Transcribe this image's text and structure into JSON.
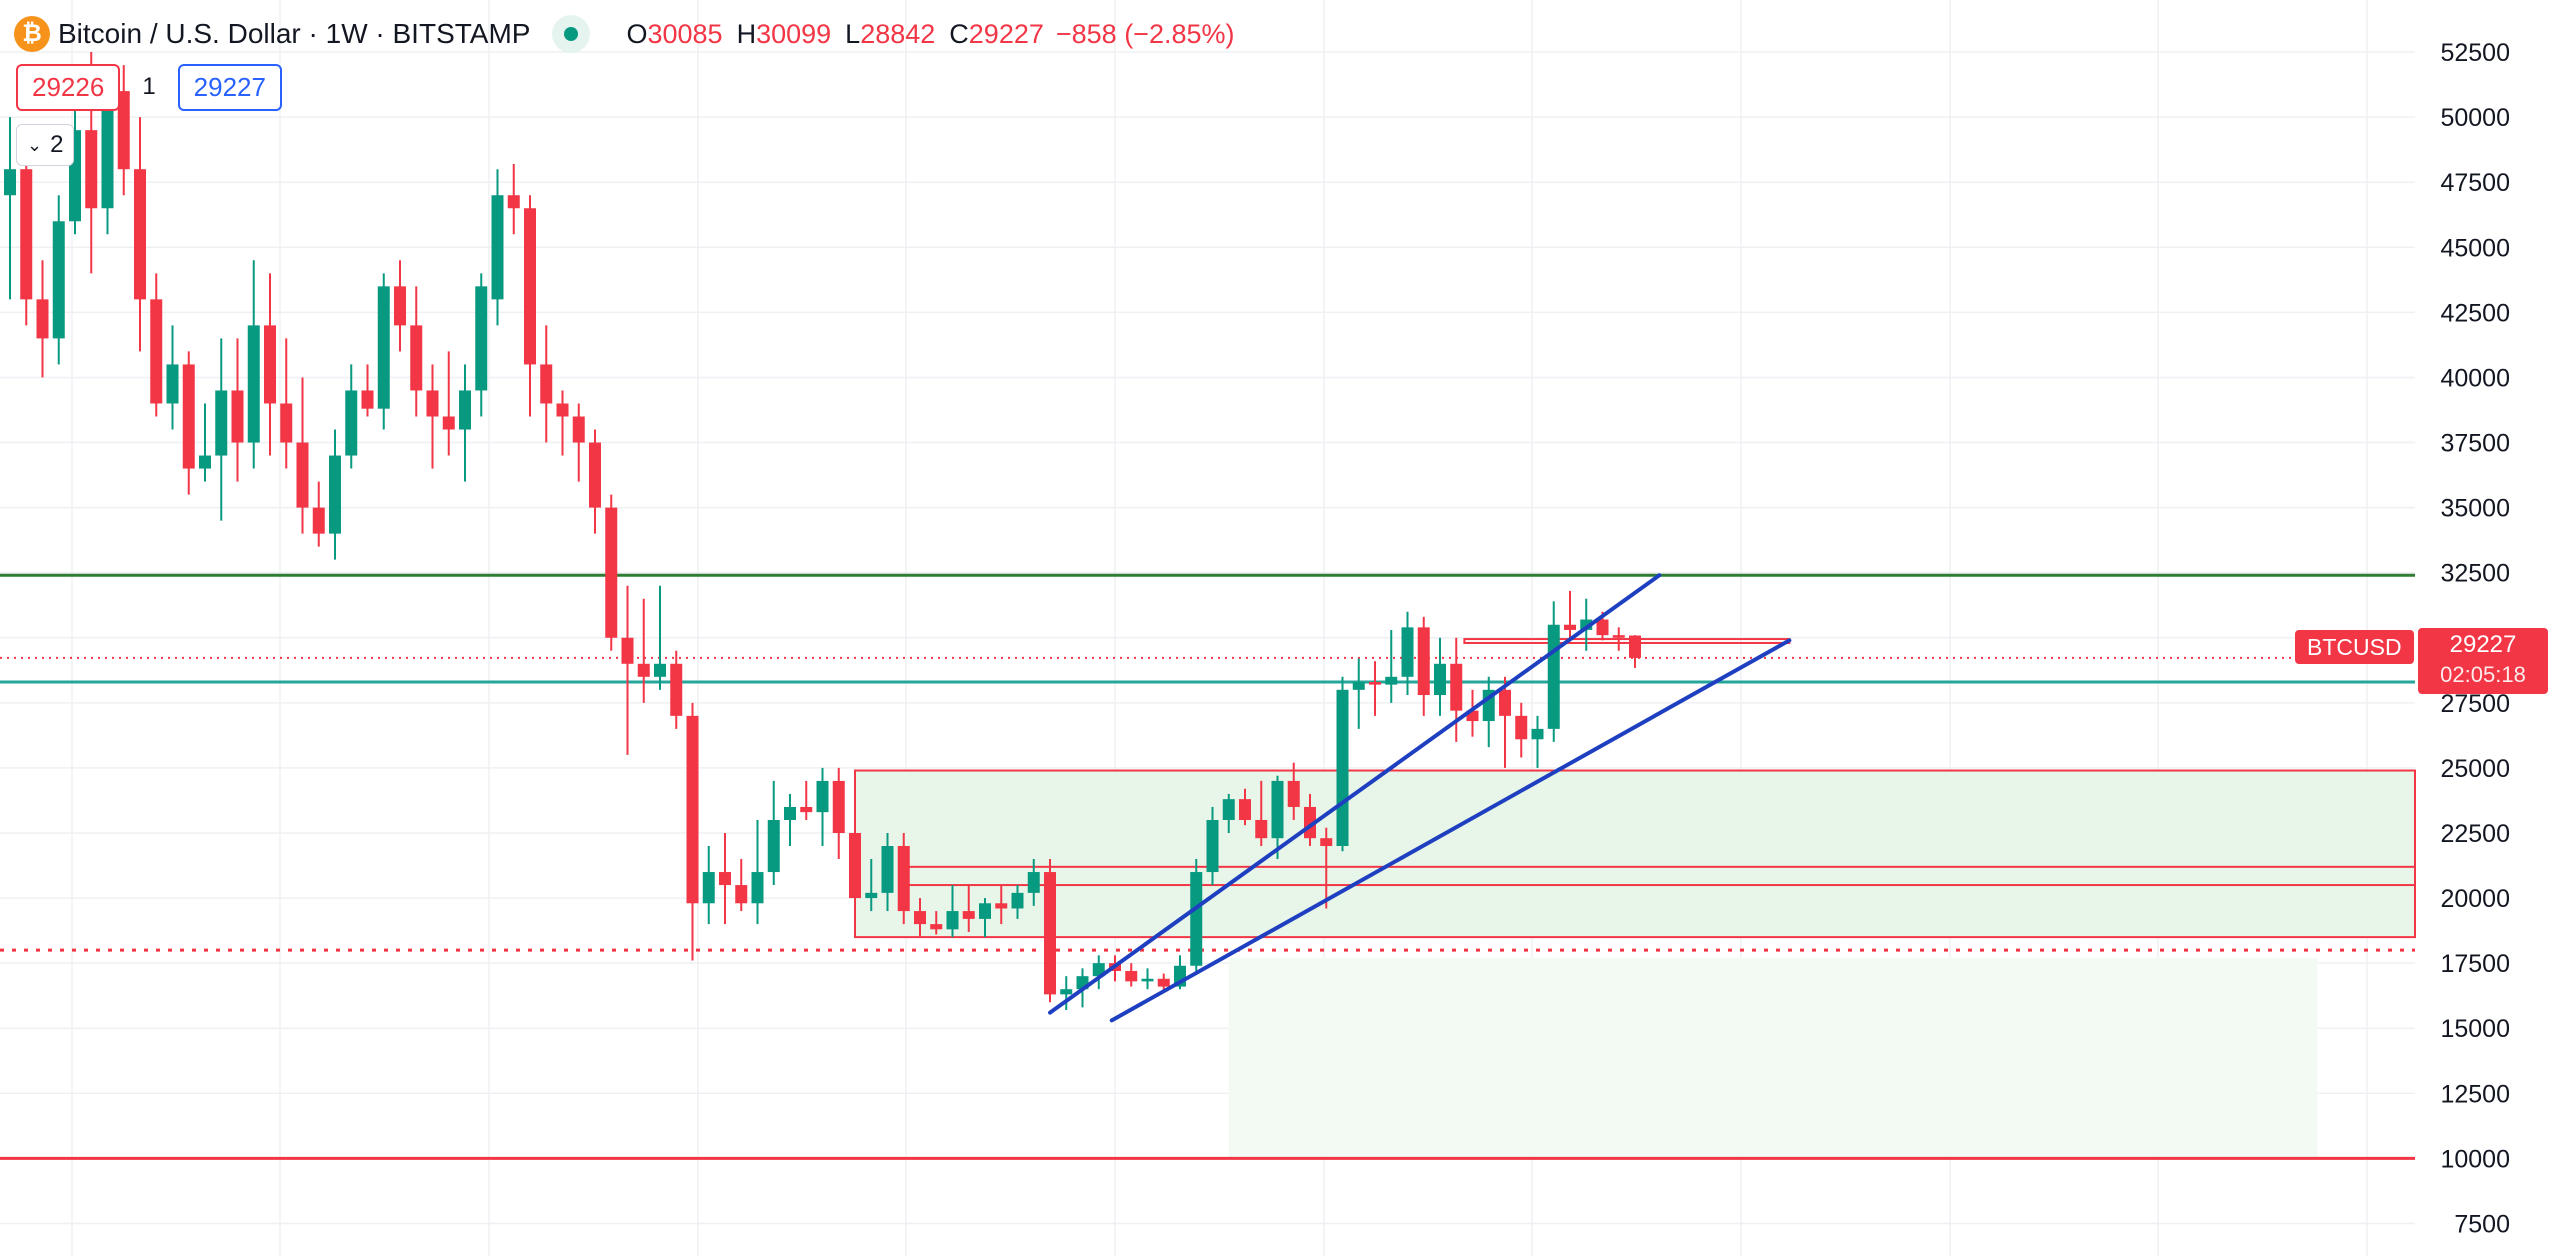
{
  "header": {
    "symbol_title": "Bitcoin / U.S. Dollar · 1W · BITSTAMP",
    "coin_icon": "₿",
    "ohlc": {
      "open_label": "O",
      "open": "30085",
      "high_label": "H",
      "high": "30099",
      "low_label": "L",
      "low": "28842",
      "close_label": "C",
      "close": "29227",
      "change": "−858 (−2.85%)"
    }
  },
  "trade": {
    "sell_price": "29226",
    "quantity": "1",
    "buy_price": "29227"
  },
  "indicators_toggle": {
    "count": "2",
    "icon": "chevron-down-icon"
  },
  "price_label": {
    "symbol": "BTCUSD",
    "price": "29227",
    "countdown": "02:05:18"
  },
  "colors": {
    "up": "#089981",
    "down": "#f23645",
    "trendline": "#1e40c0",
    "support_line": "#26a69a",
    "resistance_line": "#2e7d32",
    "zone_fill": "#e8f5e9",
    "grid": "#eef0f3"
  },
  "chart_data": {
    "type": "candlestick",
    "symbol": "BTCUSD",
    "exchange": "BITSTAMP",
    "interval": "1W",
    "ylim": [
      6250,
      54500
    ],
    "y_ticks": [
      7500,
      10000,
      12500,
      15000,
      17500,
      20000,
      22500,
      25000,
      27500,
      30000,
      32500,
      35000,
      37500,
      40000,
      42500,
      45000,
      47500,
      50000,
      52500
    ],
    "grid": true,
    "candles": [
      [
        0,
        47000,
        50000,
        43000,
        48000
      ],
      [
        1,
        48000,
        48500,
        42000,
        43000
      ],
      [
        2,
        43000,
        44500,
        40000,
        41500
      ],
      [
        3,
        41500,
        47000,
        40500,
        46000
      ],
      [
        4,
        46000,
        50500,
        45500,
        49500
      ],
      [
        5,
        49500,
        52500,
        44000,
        46500
      ],
      [
        6,
        46500,
        52000,
        45500,
        51000
      ],
      [
        7,
        51000,
        52000,
        47000,
        48000
      ],
      [
        8,
        48000,
        50000,
        41000,
        43000
      ],
      [
        9,
        43000,
        44000,
        38500,
        39000
      ],
      [
        10,
        39000,
        42000,
        38000,
        40500
      ],
      [
        11,
        40500,
        41000,
        35500,
        36500
      ],
      [
        12,
        36500,
        39000,
        36000,
        37000
      ],
      [
        13,
        37000,
        41500,
        34500,
        39500
      ],
      [
        14,
        39500,
        41500,
        36000,
        37500
      ],
      [
        15,
        37500,
        44500,
        36500,
        42000
      ],
      [
        16,
        42000,
        44000,
        37000,
        39000
      ],
      [
        17,
        39000,
        41500,
        36500,
        37500
      ],
      [
        18,
        37500,
        40000,
        34000,
        35000
      ],
      [
        19,
        35000,
        36000,
        33500,
        34000
      ],
      [
        20,
        34000,
        38000,
        33000,
        37000
      ],
      [
        21,
        37000,
        40500,
        36500,
        39500
      ],
      [
        22,
        39500,
        40500,
        38500,
        38800
      ],
      [
        23,
        38800,
        44000,
        38000,
        43500
      ],
      [
        24,
        43500,
        44500,
        41000,
        42000
      ],
      [
        25,
        42000,
        43500,
        38500,
        39500
      ],
      [
        26,
        39500,
        40500,
        36500,
        38500
      ],
      [
        27,
        38500,
        41000,
        37000,
        38000
      ],
      [
        28,
        38000,
        40500,
        36000,
        39500
      ],
      [
        29,
        39500,
        44000,
        38500,
        43500
      ],
      [
        30,
        43000,
        48000,
        42000,
        47000
      ],
      [
        31,
        47000,
        48200,
        45500,
        46500
      ],
      [
        32,
        46500,
        47000,
        38500,
        40500
      ],
      [
        33,
        40500,
        42000,
        37500,
        39000
      ],
      [
        34,
        39000,
        39500,
        37000,
        38500
      ],
      [
        35,
        38500,
        39000,
        36000,
        37500
      ],
      [
        36,
        37500,
        38000,
        34000,
        35000
      ],
      [
        37,
        35000,
        35500,
        29500,
        30000
      ],
      [
        38,
        30000,
        32000,
        25500,
        29000
      ],
      [
        39,
        29000,
        31500,
        27500,
        28500
      ],
      [
        40,
        28500,
        32000,
        28000,
        29000
      ],
      [
        41,
        29000,
        29500,
        26500,
        27000
      ],
      [
        42,
        27000,
        27500,
        17600,
        19800
      ],
      [
        43,
        19800,
        22000,
        19000,
        21000
      ],
      [
        44,
        21000,
        22500,
        19000,
        20500
      ],
      [
        45,
        20500,
        21500,
        19500,
        19800
      ],
      [
        46,
        19800,
        23000,
        19000,
        21000
      ],
      [
        47,
        21000,
        24500,
        20500,
        23000
      ],
      [
        48,
        23000,
        24000,
        22000,
        23500
      ],
      [
        49,
        23500,
        24500,
        23000,
        23300
      ],
      [
        50,
        23300,
        25000,
        22000,
        24500
      ],
      [
        51,
        24500,
        25000,
        21500,
        22500
      ],
      [
        52,
        22500,
        23000,
        19000,
        20000
      ],
      [
        53,
        20000,
        21500,
        19500,
        20200
      ],
      [
        54,
        20200,
        22500,
        19500,
        22000
      ],
      [
        55,
        22000,
        22500,
        19000,
        19500
      ],
      [
        56,
        19500,
        20000,
        18500,
        19000
      ],
      [
        57,
        19000,
        19500,
        18600,
        18800
      ],
      [
        58,
        18800,
        20500,
        18500,
        19500
      ],
      [
        59,
        19500,
        20500,
        18700,
        19200
      ],
      [
        60,
        19200,
        20000,
        18500,
        19800
      ],
      [
        61,
        19800,
        20500,
        19000,
        19600
      ],
      [
        62,
        19600,
        20500,
        19200,
        20200
      ],
      [
        63,
        20200,
        21500,
        19700,
        21000
      ],
      [
        64,
        21000,
        21500,
        16000,
        16300
      ],
      [
        65,
        16300,
        17000,
        15700,
        16500
      ],
      [
        66,
        16500,
        17300,
        15800,
        17000
      ],
      [
        67,
        17000,
        17800,
        16500,
        17500
      ],
      [
        68,
        17500,
        17800,
        16800,
        17200
      ],
      [
        69,
        17200,
        17500,
        16600,
        16800
      ],
      [
        70,
        16800,
        17300,
        16500,
        16900
      ],
      [
        71,
        16900,
        17100,
        16400,
        16600
      ],
      [
        72,
        16600,
        17800,
        16500,
        17400
      ],
      [
        73,
        17400,
        21500,
        17200,
        21000
      ],
      [
        74,
        21000,
        23500,
        20500,
        23000
      ],
      [
        75,
        23000,
        24000,
        22500,
        23800
      ],
      [
        76,
        23800,
        24200,
        22800,
        23000
      ],
      [
        77,
        23000,
        24500,
        22000,
        22300
      ],
      [
        78,
        22300,
        24700,
        21500,
        24500
      ],
      [
        79,
        24500,
        25200,
        23000,
        23500
      ],
      [
        80,
        23500,
        24000,
        22000,
        22300
      ],
      [
        81,
        22300,
        22700,
        19600,
        22000
      ],
      [
        82,
        22000,
        28500,
        21800,
        28000
      ],
      [
        83,
        28000,
        29200,
        26500,
        28300
      ],
      [
        84,
        28300,
        29100,
        27000,
        28200
      ],
      [
        85,
        28200,
        30300,
        27500,
        28500
      ],
      [
        86,
        28500,
        31000,
        27800,
        30400
      ],
      [
        87,
        30400,
        30800,
        27000,
        27800
      ],
      [
        88,
        27800,
        30000,
        27000,
        29000
      ],
      [
        89,
        29000,
        30000,
        26000,
        27200
      ],
      [
        90,
        27200,
        28000,
        26200,
        26800
      ],
      [
        91,
        26800,
        28500,
        25800,
        28000
      ],
      [
        92,
        28000,
        28500,
        25000,
        27000
      ],
      [
        93,
        27000,
        27500,
        25400,
        26100
      ],
      [
        94,
        26100,
        27000,
        25000,
        26500
      ],
      [
        95,
        26500,
        31400,
        26000,
        30500
      ],
      [
        96,
        30500,
        31800,
        29900,
        30300
      ],
      [
        97,
        30300,
        31500,
        29500,
        30700
      ],
      [
        98,
        30700,
        31000,
        29900,
        30100
      ],
      [
        99,
        30100,
        30400,
        29500,
        30000
      ],
      [
        100,
        30085,
        30099,
        28842,
        29227
      ]
    ],
    "horizontal_lines": [
      {
        "name": "resistance",
        "price": 32400,
        "style": "solid",
        "color": "#2e7d32"
      },
      {
        "name": "support",
        "price": 28300,
        "style": "solid",
        "color": "#26a69a"
      },
      {
        "name": "last-price",
        "price": 29227,
        "style": "dotted",
        "color": "#f23645"
      },
      {
        "name": "low-level",
        "price": 18000,
        "style": "dotted",
        "color": "#f23645"
      },
      {
        "name": "bottom-level",
        "price": 10000,
        "style": "solid",
        "color": "#f23645"
      }
    ],
    "trendlines": [
      {
        "name": "upper-channel",
        "from": [
          64.0,
          15600
        ],
        "to": [
          101.5,
          32400
        ]
      },
      {
        "name": "lower-channel",
        "from": [
          67.8,
          15300
        ],
        "to": [
          109.5,
          29900
        ]
      }
    ],
    "zones": [
      {
        "name": "demand-zone-large",
        "x_from": 52.0,
        "x_to": 155.0,
        "y_from": 18500,
        "y_to": 24900,
        "fill": "#e8f5e9",
        "border": "#f23645"
      },
      {
        "name": "demand-zone-inner",
        "x_from": 55.0,
        "x_to": 155.0,
        "y_from": 20500,
        "y_to": 21200,
        "fill": "none",
        "border": "#f23645"
      },
      {
        "name": "projection-zone",
        "x_from": 75.0,
        "x_to": 142.0,
        "y_from": 10000,
        "y_to": 17700,
        "fill": "#f3faf3",
        "border": "none"
      },
      {
        "name": "resistance-box",
        "x_from": 89.5,
        "x_to": 109.5,
        "y_from": 29800,
        "y_to": 29950,
        "fill": "none",
        "border": "#f23645"
      }
    ]
  }
}
